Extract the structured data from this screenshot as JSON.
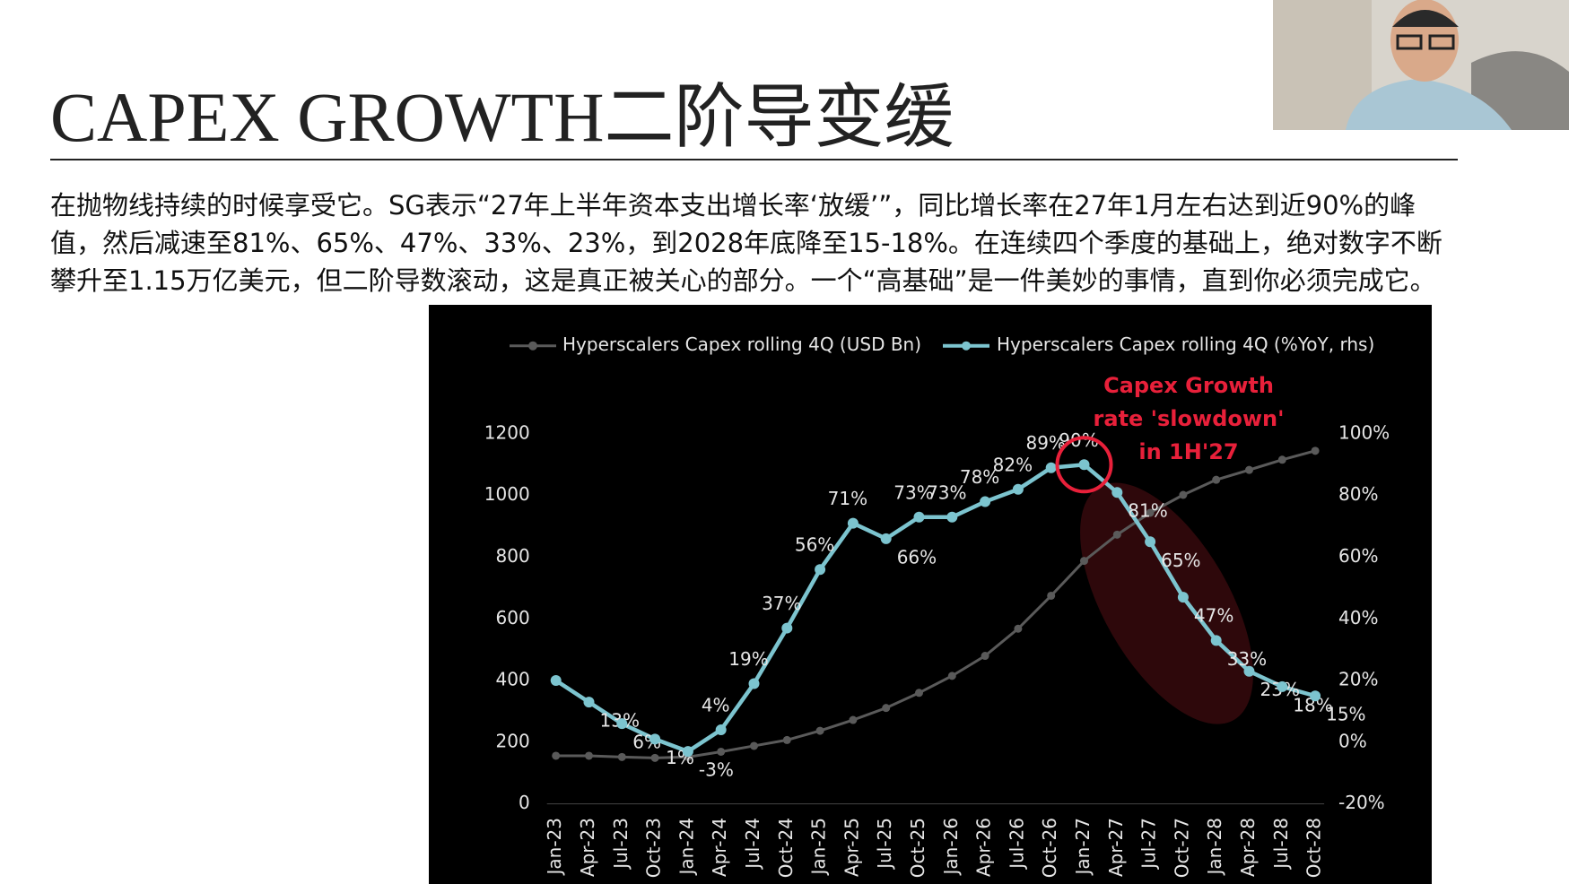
{
  "slide": {
    "title": "CAPEX GROWTH二阶导变缓",
    "paragraph": "在抛物线持续的时候享受它。SG表示“27年上半年资本支出增长率‘放缓’”，同比增长率在27年1月左右达到近90%的峰值，然后减速至81%、65%、47%、33%、23%，到2028年底降至15-18%。在连续四个季度的基础上，绝对数字不断攀升至1.15万亿美元，但二阶导数滚动，这是真正被关心的部分。一个“高基础”是一件美妙的事情，直到你必须完成它。"
  },
  "chart_data": {
    "type": "line",
    "annotation": [
      "Capex Growth",
      "rate 'slowdown'",
      "in 1H'27"
    ],
    "categories": [
      "Jan-23",
      "Apr-23",
      "Jul-23",
      "Oct-23",
      "Jan-24",
      "Apr-24",
      "Jul-24",
      "Oct-24",
      "Jan-25",
      "Apr-25",
      "Jul-25",
      "Oct-25",
      "Jan-26",
      "Apr-26",
      "Jul-26",
      "Oct-26",
      "Jan-27",
      "Apr-27",
      "Jul-27",
      "Oct-27",
      "Jan-28",
      "Apr-28",
      "Jul-28",
      "Oct-28"
    ],
    "series": [
      {
        "name": "Hyperscalers Capex rolling 4Q (USD Bn)",
        "color": "#5a5a5a",
        "axis": "y",
        "values": [
          156,
          156,
          152,
          149,
          152,
          169,
          188,
          207,
          237,
          272,
          311,
          360,
          415,
          480,
          568,
          675,
          788,
          873,
          944,
          1002,
          1051,
          1083,
          1116,
          1145
        ]
      },
      {
        "name": "Hyperscalers Capex rolling 4Q (%YoY, rhs)",
        "color": "#7cc4cf",
        "axis": "y2",
        "values": [
          20,
          13,
          6,
          1,
          -3,
          4,
          19,
          37,
          56,
          71,
          66,
          73,
          73,
          78,
          82,
          89,
          90,
          81,
          65,
          47,
          33,
          23,
          18,
          15
        ],
        "value_labels": [
          null,
          "13%",
          "6%",
          "1%",
          "-3%",
          "4%",
          "19%",
          "37%",
          "56%",
          "71%",
          "66%",
          "73%",
          "73%",
          "78%",
          "82%",
          "89%",
          "90%",
          "81%",
          "65%",
          "47%",
          "33%",
          "23%",
          "18%",
          "15%"
        ]
      }
    ],
    "ylim": [
      0,
      1200
    ],
    "yticks": [
      0,
      200,
      400,
      600,
      800,
      1000,
      1200
    ],
    "y2lim": [
      -20,
      100
    ],
    "y2ticks": [
      {
        "value": -20,
        "label": "-20%"
      },
      {
        "value": 0,
        "label": "0%"
      },
      {
        "value": 20,
        "label": "20%"
      },
      {
        "value": 40,
        "label": "40%"
      },
      {
        "value": 60,
        "label": "60%"
      },
      {
        "value": 80,
        "label": "80%"
      },
      {
        "value": 100,
        "label": "100%"
      }
    ],
    "grid": false,
    "highlight_category": 16,
    "highlight_color": "#e8203a"
  }
}
